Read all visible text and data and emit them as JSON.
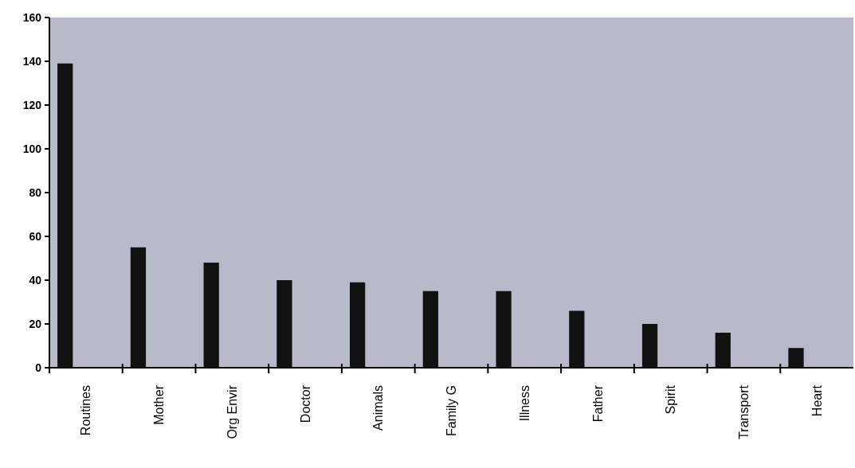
{
  "chart_data": {
    "type": "bar",
    "categories": [
      "Routines",
      "Mother",
      "Org Envir",
      "Doctor",
      "Animals",
      "Family G",
      "Illness",
      "Father",
      "Spirit",
      "Transport",
      "Heart"
    ],
    "values": [
      139,
      55,
      48,
      40,
      39,
      35,
      35,
      26,
      20,
      16,
      9
    ],
    "color": "#111111",
    "ylim": [
      0,
      160
    ],
    "yticks": [
      0,
      20,
      40,
      60,
      80,
      100,
      120,
      140,
      160
    ],
    "grid": false
  }
}
